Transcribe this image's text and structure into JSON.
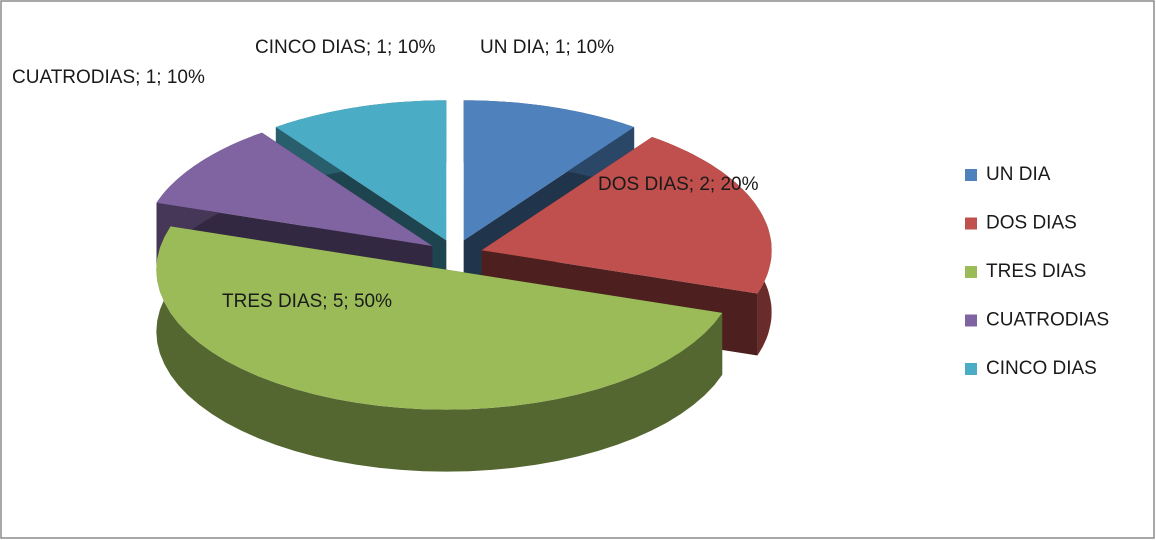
{
  "chart_data": {
    "type": "pie",
    "categories": [
      "UN DIA",
      "DOS DIAS",
      "TRES DIAS",
      "CUATRODIAS",
      "CINCO DIAS"
    ],
    "values": [
      1,
      2,
      5,
      1,
      1
    ],
    "value_labels": [
      "UN DIA; 1; 10%",
      "DOS DIAS; 2; 20%",
      "TRES DIAS; 5; 50%",
      "CUATRODIAS; 1; 10%",
      "CINCO DIAS; 1; 10%"
    ],
    "colors": [
      "#4f81bd",
      "#c0504d",
      "#9bbb59",
      "#8064a2",
      "#4bacc6"
    ],
    "legend": "right"
  }
}
